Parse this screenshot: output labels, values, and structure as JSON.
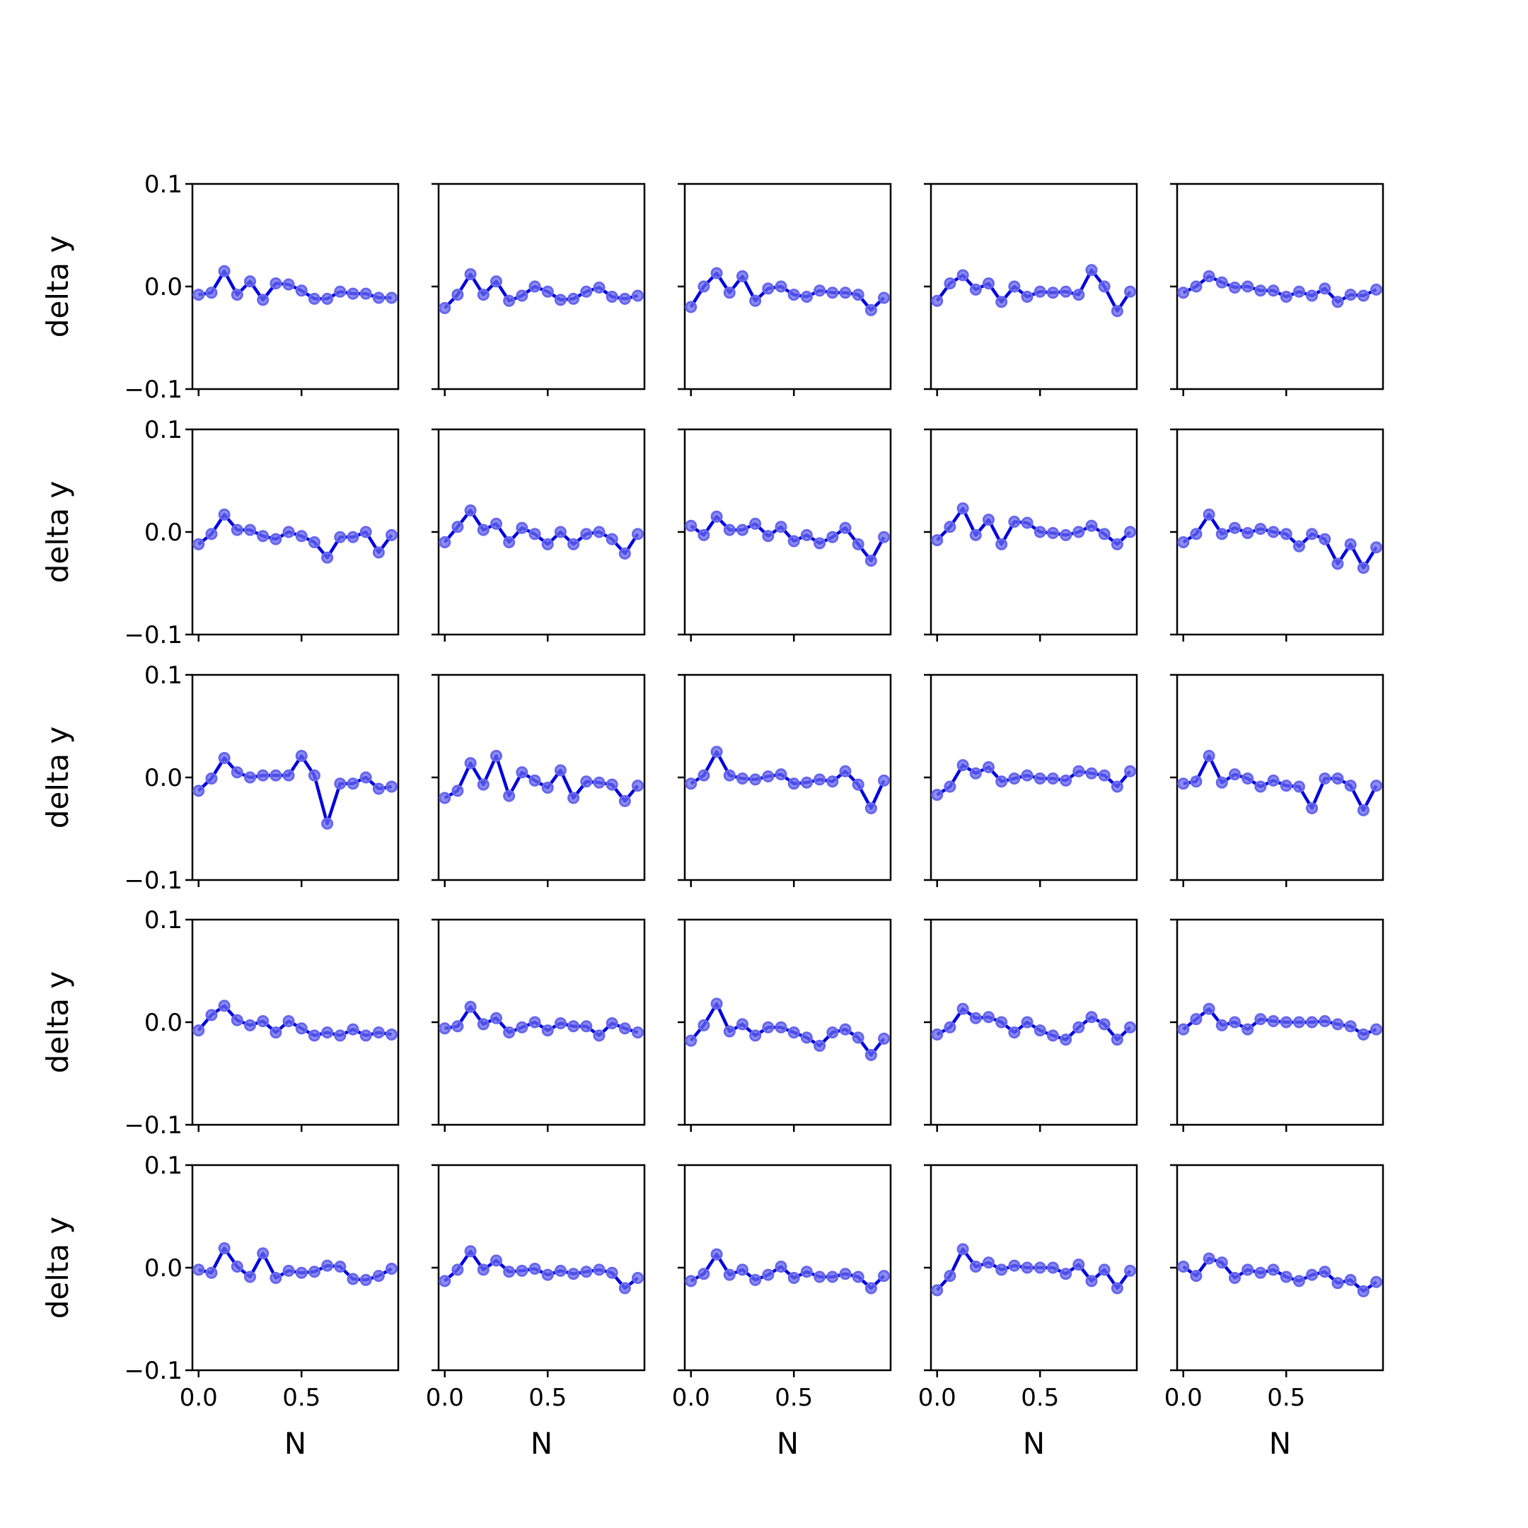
{
  "chart_data": {
    "type": "line",
    "layout": "5x5 grid of subplots",
    "x": [
      0.0,
      0.0625,
      0.125,
      0.1875,
      0.25,
      0.3125,
      0.375,
      0.4375,
      0.5,
      0.5625,
      0.625,
      0.6875,
      0.75,
      0.8125,
      0.875,
      0.9375
    ],
    "xlim": [
      -0.03,
      0.97
    ],
    "ylim": [
      -0.1,
      0.1
    ],
    "xticks": [
      0.0,
      0.5
    ],
    "yticks": [
      -0.1,
      0.0,
      0.1
    ],
    "xtick_labels": [
      "0.0",
      "0.5"
    ],
    "ytick_labels": [
      "−0.1",
      "0.0",
      "0.1"
    ],
    "xlabel": "N",
    "ylabel": "delta y",
    "line_color": "#0000dd",
    "marker_color": "#6666ee",
    "grid": false,
    "panels": [
      {
        "row": 0,
        "col": 0,
        "values": [
          -0.008,
          -0.006,
          0.015,
          -0.008,
          0.005,
          -0.013,
          0.003,
          0.002,
          -0.004,
          -0.012,
          -0.012,
          -0.005,
          -0.007,
          -0.007,
          -0.011,
          -0.011
        ]
      },
      {
        "row": 0,
        "col": 1,
        "values": [
          -0.021,
          -0.008,
          0.012,
          -0.008,
          0.005,
          -0.014,
          -0.009,
          0.0,
          -0.005,
          -0.013,
          -0.012,
          -0.005,
          -0.001,
          -0.01,
          -0.012,
          -0.009
        ]
      },
      {
        "row": 0,
        "col": 2,
        "values": [
          -0.02,
          0.0,
          0.013,
          -0.006,
          0.01,
          -0.014,
          -0.002,
          0.0,
          -0.008,
          -0.01,
          -0.004,
          -0.006,
          -0.006,
          -0.008,
          -0.023,
          -0.011
        ]
      },
      {
        "row": 0,
        "col": 3,
        "values": [
          -0.014,
          0.003,
          0.011,
          -0.003,
          0.003,
          -0.015,
          0.0,
          -0.01,
          -0.005,
          -0.006,
          -0.005,
          -0.008,
          0.016,
          0.0,
          -0.024,
          -0.005
        ]
      },
      {
        "row": 0,
        "col": 4,
        "values": [
          -0.006,
          0.0,
          0.01,
          0.004,
          -0.001,
          0.0,
          -0.004,
          -0.004,
          -0.01,
          -0.005,
          -0.009,
          -0.002,
          -0.015,
          -0.008,
          -0.009,
          -0.003
        ]
      },
      {
        "row": 1,
        "col": 0,
        "values": [
          -0.012,
          -0.002,
          0.017,
          0.002,
          0.002,
          -0.004,
          -0.007,
          0.0,
          -0.004,
          -0.01,
          -0.025,
          -0.005,
          -0.005,
          0.0,
          -0.02,
          -0.003
        ]
      },
      {
        "row": 1,
        "col": 1,
        "values": [
          -0.01,
          0.005,
          0.021,
          0.002,
          0.008,
          -0.01,
          0.004,
          -0.002,
          -0.012,
          0.0,
          -0.012,
          -0.002,
          0.0,
          -0.007,
          -0.021,
          -0.002
        ]
      },
      {
        "row": 1,
        "col": 2,
        "values": [
          0.006,
          -0.003,
          0.015,
          0.002,
          0.002,
          0.008,
          -0.004,
          0.005,
          -0.009,
          -0.003,
          -0.011,
          -0.005,
          0.004,
          -0.012,
          -0.028,
          -0.005
        ]
      },
      {
        "row": 1,
        "col": 3,
        "values": [
          -0.008,
          0.005,
          0.023,
          -0.003,
          0.012,
          -0.012,
          0.01,
          0.009,
          0.0,
          -0.001,
          -0.003,
          0.0,
          0.006,
          -0.002,
          -0.012,
          0.0
        ]
      },
      {
        "row": 1,
        "col": 4,
        "values": [
          -0.01,
          -0.002,
          0.017,
          -0.002,
          0.004,
          -0.001,
          0.003,
          0.0,
          -0.002,
          -0.014,
          -0.002,
          -0.007,
          -0.031,
          -0.012,
          -0.035,
          -0.015
        ]
      },
      {
        "row": 2,
        "col": 0,
        "values": [
          -0.013,
          -0.001,
          0.019,
          0.005,
          0.0,
          0.002,
          0.002,
          0.002,
          0.021,
          0.002,
          -0.045,
          -0.006,
          -0.006,
          0.0,
          -0.011,
          -0.009
        ]
      },
      {
        "row": 2,
        "col": 1,
        "values": [
          -0.02,
          -0.013,
          0.014,
          -0.007,
          0.021,
          -0.018,
          0.005,
          -0.003,
          -0.01,
          0.007,
          -0.02,
          -0.004,
          -0.005,
          -0.007,
          -0.023,
          -0.008
        ]
      },
      {
        "row": 2,
        "col": 2,
        "values": [
          -0.006,
          0.002,
          0.025,
          0.002,
          -0.001,
          -0.002,
          0.001,
          0.003,
          -0.006,
          -0.005,
          -0.002,
          -0.004,
          0.006,
          -0.007,
          -0.03,
          -0.003
        ]
      },
      {
        "row": 2,
        "col": 3,
        "values": [
          -0.017,
          -0.009,
          0.012,
          0.004,
          0.01,
          -0.004,
          -0.001,
          0.002,
          -0.001,
          -0.001,
          -0.003,
          0.006,
          0.004,
          0.002,
          -0.009,
          0.006
        ]
      },
      {
        "row": 2,
        "col": 4,
        "values": [
          -0.006,
          -0.004,
          0.021,
          -0.005,
          0.003,
          -0.001,
          -0.009,
          -0.003,
          -0.008,
          -0.009,
          -0.03,
          -0.001,
          -0.001,
          -0.008,
          -0.032,
          -0.008
        ]
      },
      {
        "row": 3,
        "col": 0,
        "values": [
          -0.008,
          0.007,
          0.016,
          0.002,
          -0.003,
          0.001,
          -0.01,
          0.001,
          -0.006,
          -0.013,
          -0.01,
          -0.013,
          -0.007,
          -0.013,
          -0.01,
          -0.012
        ]
      },
      {
        "row": 3,
        "col": 1,
        "values": [
          -0.006,
          -0.004,
          0.015,
          -0.002,
          0.004,
          -0.01,
          -0.005,
          0.0,
          -0.008,
          -0.001,
          -0.004,
          -0.004,
          -0.013,
          -0.001,
          -0.006,
          -0.01
        ]
      },
      {
        "row": 3,
        "col": 2,
        "values": [
          -0.018,
          -0.003,
          0.018,
          -0.009,
          -0.002,
          -0.013,
          -0.005,
          -0.005,
          -0.01,
          -0.015,
          -0.023,
          -0.01,
          -0.007,
          -0.015,
          -0.032,
          -0.016
        ]
      },
      {
        "row": 3,
        "col": 3,
        "values": [
          -0.012,
          -0.005,
          0.013,
          0.004,
          0.005,
          0.0,
          -0.01,
          0.0,
          -0.008,
          -0.013,
          -0.017,
          -0.005,
          0.005,
          -0.002,
          -0.017,
          -0.005
        ]
      },
      {
        "row": 3,
        "col": 4,
        "values": [
          -0.007,
          0.003,
          0.013,
          -0.003,
          0.0,
          -0.007,
          0.003,
          0.001,
          0.0,
          0.0,
          0.0,
          0.001,
          -0.002,
          -0.004,
          -0.012,
          -0.007
        ]
      },
      {
        "row": 4,
        "col": 0,
        "values": [
          -0.002,
          -0.005,
          0.019,
          0.001,
          -0.009,
          0.014,
          -0.01,
          -0.003,
          -0.005,
          -0.004,
          0.002,
          0.001,
          -0.011,
          -0.012,
          -0.008,
          -0.001
        ]
      },
      {
        "row": 4,
        "col": 1,
        "values": [
          -0.013,
          -0.002,
          0.016,
          -0.002,
          0.007,
          -0.004,
          -0.003,
          -0.001,
          -0.007,
          -0.003,
          -0.006,
          -0.004,
          -0.002,
          -0.005,
          -0.02,
          -0.01
        ]
      },
      {
        "row": 4,
        "col": 2,
        "values": [
          -0.013,
          -0.006,
          0.013,
          -0.007,
          -0.002,
          -0.012,
          -0.007,
          0.001,
          -0.01,
          -0.004,
          -0.009,
          -0.009,
          -0.006,
          -0.009,
          -0.02,
          -0.008
        ]
      },
      {
        "row": 4,
        "col": 3,
        "values": [
          -0.022,
          -0.008,
          0.018,
          0.001,
          0.005,
          -0.002,
          0.002,
          0.0,
          0.0,
          0.0,
          -0.006,
          0.003,
          -0.013,
          -0.002,
          -0.02,
          -0.003
        ]
      },
      {
        "row": 4,
        "col": 4,
        "values": [
          0.001,
          -0.008,
          0.009,
          0.005,
          -0.01,
          -0.002,
          -0.005,
          -0.002,
          -0.009,
          -0.013,
          -0.007,
          -0.004,
          -0.015,
          -0.012,
          -0.023,
          -0.014
        ]
      }
    ]
  }
}
